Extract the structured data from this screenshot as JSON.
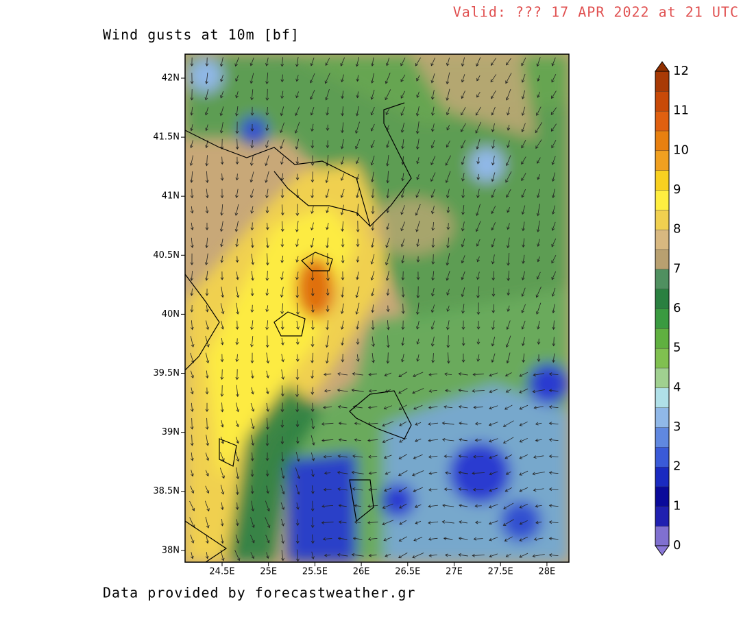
{
  "header": {
    "valid": "Valid: ??? 17 APR 2022 at 21 UTC"
  },
  "map": {
    "title": "Wind gusts at 10m [bf]",
    "lat_labels": [
      "42N",
      "41.5N",
      "41N",
      "40.5N",
      "40N",
      "39.5N",
      "39N",
      "38.5N",
      "38N"
    ],
    "lon_labels": [
      "24.5E",
      "25E",
      "25.5E",
      "26E",
      "26.5E",
      "27E",
      "27.5E",
      "28E"
    ]
  },
  "colorbar": {
    "labels": [
      0,
      1,
      2,
      3,
      4,
      5,
      6,
      7,
      8,
      9,
      10,
      11,
      12
    ]
  },
  "footer": {
    "credit": "Data provided by forecastweather.gr"
  }
}
